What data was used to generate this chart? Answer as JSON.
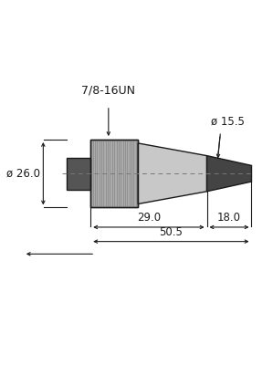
{
  "bg_color": "#ffffff",
  "knurl_color": "#aaaaaa",
  "knurl_line_color": "#888888",
  "body_color": "#c8c8c8",
  "dark_color": "#555555",
  "darker_color": "#444444",
  "line_color": "#1a1a1a",
  "dim_color": "#1a1a1a",
  "center_color": "#777777",
  "label_7816UN": "7/8-16UN",
  "label_dia26": "ø 26.0",
  "label_dia155": "ø 15.5",
  "label_290": "29.0",
  "label_180": "18.0",
  "label_505": "50.5",
  "font_size": 8.5
}
